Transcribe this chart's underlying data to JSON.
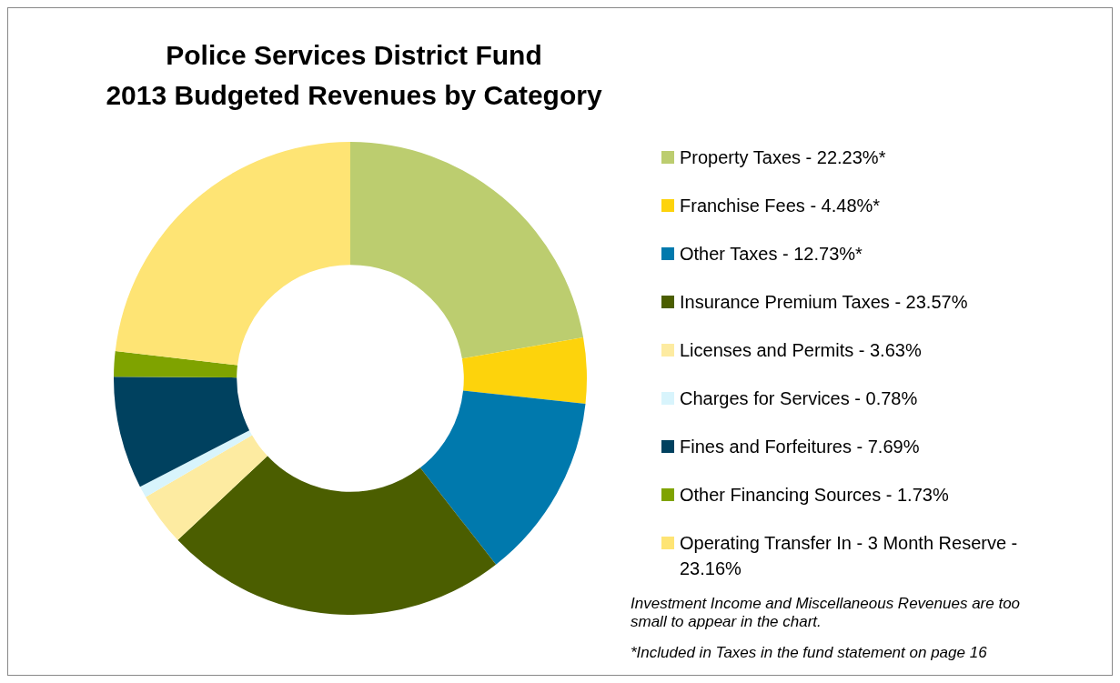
{
  "chart_data": {
    "type": "donut",
    "title": "Police Services District Fund",
    "subtitle": "2013 Budgeted Revenues by Category",
    "categories": [
      "Property Taxes - 22.23%*",
      "Franchise Fees - 4.48%*",
      "Other Taxes - 12.73%*",
      "Insurance Premium Taxes - 23.57%",
      "Licenses and Permits - 3.63%",
      "Charges for Services - 0.78%",
      "Fines and Forfeitures - 7.69%",
      "Other Financing Sources - 1.73%",
      "Operating Transfer In - 3 Month Reserve - 23.16%"
    ],
    "values": [
      22.23,
      4.48,
      12.73,
      23.57,
      3.63,
      0.78,
      7.69,
      1.73,
      23.16
    ],
    "colors": [
      "#bccd6f",
      "#fdd30c",
      "#0079ad",
      "#4b5e00",
      "#fdeba1",
      "#d8f4fc",
      "#00415f",
      "#7fa300",
      "#fee474"
    ],
    "legend": "right",
    "annotations": [
      "Investment Income and Miscellaneous Revenues are too small to appear in the chart.",
      "*Included in Taxes in the fund statement on page 16"
    ]
  }
}
